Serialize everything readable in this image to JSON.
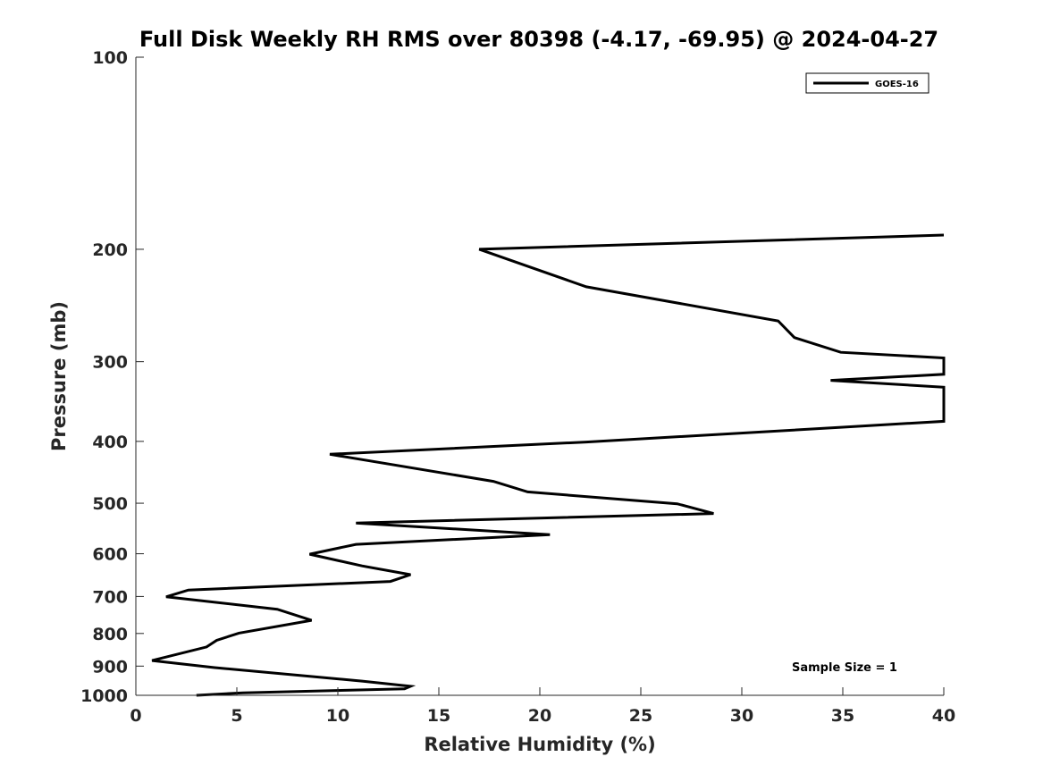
{
  "chart_data": {
    "type": "line",
    "title": "Full Disk Weekly RH RMS over 80398 (-4.17, -69.95) @ 2024-04-27",
    "xlabel": "Relative Humidity (%)",
    "ylabel": "Pressure (mb)",
    "xlim": [
      0,
      40
    ],
    "ylim": [
      100,
      1000
    ],
    "yscale": "log",
    "y_reversed": true,
    "grid": false,
    "legend_position": "top-right",
    "x_ticks": [
      "0",
      "5",
      "10",
      "15",
      "20",
      "25",
      "30",
      "35",
      "40"
    ],
    "y_ticks": [
      "100",
      "200",
      "300",
      "400",
      "500",
      "600",
      "700",
      "800",
      "900",
      "1000"
    ],
    "annotation": "Sample Size = 1",
    "line_color": "#000000",
    "series": [
      {
        "name": "GOES-16",
        "x": [
          40,
          17,
          22.3,
          31.8,
          32.6,
          34.9,
          40,
          40,
          34.4,
          40,
          40,
          35,
          22.3,
          9.6,
          17.7,
          19.4,
          26.8,
          28.6,
          10.9,
          20.5,
          10.9,
          8.6,
          11.2,
          13.6,
          12.6,
          2.6,
          1.5,
          7,
          8.7,
          5.1,
          4,
          3.5,
          0.8,
          3.9,
          11.2,
          13.6,
          13.3,
          5.3,
          3
        ],
        "y": [
          190,
          200,
          229,
          259,
          275,
          290,
          296,
          314,
          321,
          329,
          372,
          380,
          401,
          419,
          462,
          480,
          501,
          519,
          537,
          560,
          580,
          601,
          627,
          647,
          663,
          684,
          701,
          733,
          763,
          799,
          820,
          840,
          882,
          905,
          950,
          968,
          977,
          991,
          1003
        ]
      }
    ]
  }
}
